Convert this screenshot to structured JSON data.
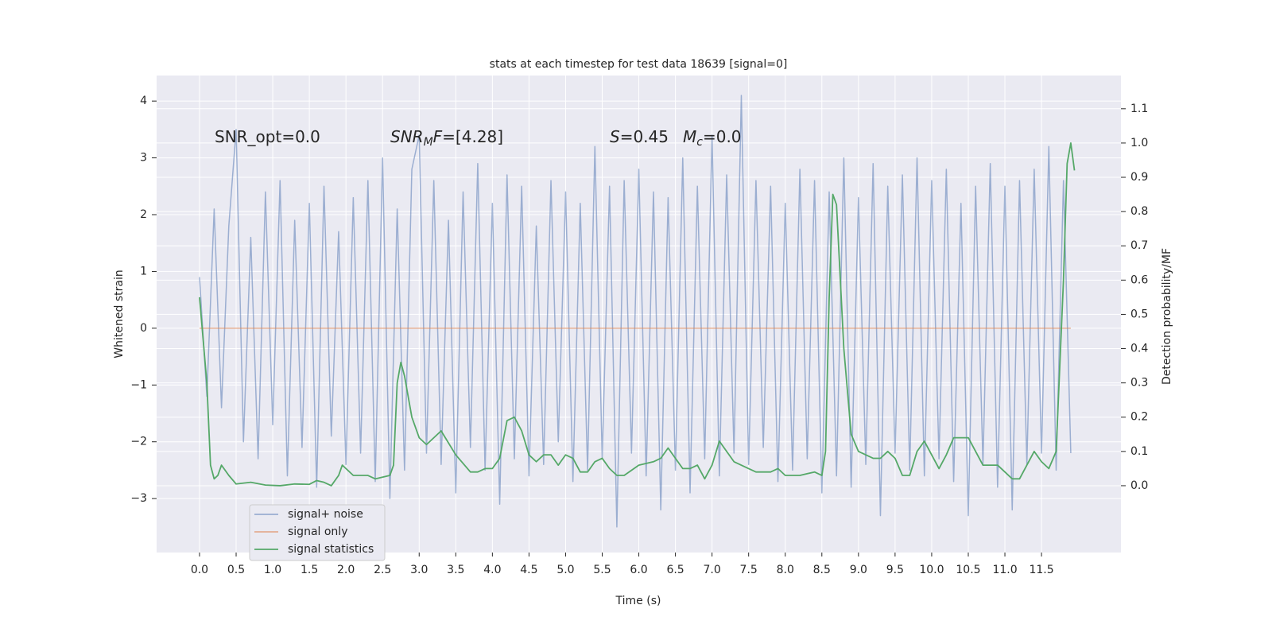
{
  "chart_data": {
    "type": "line",
    "title": "stats at each timestep for test data 18639 [signal=0]",
    "xlabel": "Time (s)",
    "ylabel": "Whitened strain",
    "y2label": "Detection probability/MF",
    "xlim": [
      -0.586,
      12.585
    ],
    "ylim": [
      -3.95,
      4.45
    ],
    "y2lim": [
      -0.195,
      1.197
    ],
    "xticks": [
      {
        "value": 0,
        "label": "0.0"
      },
      0.5,
      {
        "value": 1,
        "label": "1.0"
      },
      1.5,
      {
        "value": 2,
        "label": "2.0"
      },
      2.5,
      {
        "value": 3,
        "label": "3.0"
      },
      3.5,
      {
        "value": 4,
        "label": "4.0"
      },
      4.5,
      {
        "value": 5,
        "label": "5.0"
      },
      5.5,
      {
        "value": 6,
        "label": "6.0"
      },
      6.5,
      {
        "value": 7,
        "label": "7.0"
      },
      7.5,
      {
        "value": 8,
        "label": "8.0"
      },
      8.5,
      {
        "value": 9,
        "label": "9.0"
      },
      9.5,
      {
        "value": 10,
        "label": "10.0"
      },
      10.5,
      {
        "value": 11,
        "label": "11.0"
      },
      11.5
    ],
    "yticks": [
      {
        "value": -3,
        "label": "−3"
      },
      {
        "value": -2,
        "label": "−2"
      },
      {
        "value": -1,
        "label": "−1"
      },
      0,
      1,
      2,
      3,
      4
    ],
    "y2ticks": [
      {
        "value": 0,
        "label": "0.0"
      },
      0.1,
      0.2,
      0.3,
      0.4,
      0.5,
      0.6,
      0.7,
      0.8,
      0.9,
      {
        "value": 1,
        "label": "1.0"
      },
      1.1
    ],
    "grid": true,
    "legend": "lower left",
    "annotations": [
      {
        "parts": [
          {
            "text": "SNR_opt=0.0"
          }
        ]
      },
      {
        "parts": [
          {
            "text": "SNR",
            "italic": true
          },
          {
            "text": "M",
            "italic": true,
            "sub": true
          },
          {
            "text": "F",
            "italic": true
          },
          {
            "text": "=[4.28]"
          }
        ]
      },
      {
        "parts": [
          {
            "text": "S",
            "italic": true
          },
          {
            "text": "=0.45"
          }
        ]
      },
      {
        "parts": [
          {
            "text": "M",
            "italic": true
          },
          {
            "text": "c",
            "italic": true,
            "sub": true
          },
          {
            "text": "=0.0"
          }
        ]
      }
    ],
    "series": [
      {
        "name": "signal+ noise",
        "color": "#4c72b0",
        "opacity": 0.5,
        "x": [
          0.0,
          0.1,
          0.2,
          0.3,
          0.4,
          0.5,
          0.6,
          0.7,
          0.8,
          0.9,
          1.0,
          1.1,
          1.2,
          1.3,
          1.4,
          1.5,
          1.6,
          1.7,
          1.8,
          1.9,
          2.0,
          2.1,
          2.2,
          2.3,
          2.4,
          2.5,
          2.6,
          2.7,
          2.8,
          2.9,
          3.0,
          3.1,
          3.2,
          3.3,
          3.4,
          3.5,
          3.6,
          3.7,
          3.8,
          3.9,
          4.0,
          4.1,
          4.2,
          4.3,
          4.4,
          4.5,
          4.6,
          4.7,
          4.8,
          4.9,
          5.0,
          5.1,
          5.2,
          5.3,
          5.4,
          5.5,
          5.6,
          5.7,
          5.8,
          5.9,
          6.0,
          6.1,
          6.2,
          6.3,
          6.4,
          6.5,
          6.6,
          6.7,
          6.8,
          6.9,
          7.0,
          7.1,
          7.2,
          7.3,
          7.4,
          7.5,
          7.6,
          7.7,
          7.8,
          7.9,
          8.0,
          8.1,
          8.2,
          8.3,
          8.4,
          8.5,
          8.6,
          8.7,
          8.8,
          8.9,
          9.0,
          9.1,
          9.2,
          9.3,
          9.4,
          9.5,
          9.6,
          9.7,
          9.8,
          9.9,
          10.0,
          10.1,
          10.2,
          10.3,
          10.4,
          10.5,
          10.6,
          10.7,
          10.8,
          10.9,
          11.0,
          11.1,
          11.2,
          11.3,
          11.4,
          11.5,
          11.6,
          11.7,
          11.8,
          11.9
        ],
        "values": [
          0.9,
          -1.2,
          2.1,
          -1.4,
          1.8,
          3.5,
          -2.0,
          1.6,
          -2.3,
          2.4,
          -1.7,
          2.6,
          -2.6,
          1.9,
          -2.1,
          2.2,
          -2.8,
          2.5,
          -1.9,
          1.7,
          -2.4,
          2.3,
          -2.2,
          2.6,
          -2.7,
          3.0,
          -3.0,
          2.1,
          -2.5,
          2.8,
          3.4,
          -2.2,
          2.6,
          -2.4,
          1.9,
          -2.9,
          2.4,
          -2.1,
          2.9,
          -2.5,
          2.2,
          -3.1,
          2.7,
          -2.3,
          2.5,
          -2.6,
          1.8,
          -2.4,
          2.6,
          -2.0,
          2.4,
          -2.7,
          2.2,
          -2.5,
          3.2,
          -2.3,
          2.5,
          -3.5,
          2.6,
          -2.2,
          2.8,
          -2.6,
          2.4,
          -3.2,
          2.3,
          -2.5,
          3.0,
          -2.9,
          2.5,
          -2.3,
          3.4,
          -2.6,
          2.7,
          -2.2,
          4.1,
          -2.4,
          2.6,
          -2.1,
          2.5,
          -2.7,
          2.2,
          -2.5,
          2.8,
          -2.3,
          2.6,
          -2.9,
          2.4,
          -2.6,
          3.0,
          -2.8,
          2.3,
          -2.4,
          2.9,
          -3.3,
          2.5,
          -2.2,
          2.7,
          -2.5,
          3.0,
          -2.6,
          2.6,
          -2.3,
          2.8,
          -2.7,
          2.2,
          -3.3,
          2.5,
          -2.4,
          2.9,
          -2.8,
          2.5,
          -3.2,
          2.6,
          -2.4,
          2.8,
          -2.2,
          3.2,
          -2.5,
          2.6,
          -2.2
        ]
      },
      {
        "name": "signal only",
        "color": "#dd8452",
        "opacity": 0.6,
        "x": [
          0.0,
          11.9
        ],
        "values": [
          0,
          0
        ]
      },
      {
        "name": "signal statistics",
        "color": "#55a868",
        "opacity": 1,
        "axis": "y2",
        "x": [
          0.0,
          0.1,
          0.15,
          0.2,
          0.25,
          0.3,
          0.4,
          0.5,
          0.7,
          0.9,
          1.1,
          1.3,
          1.5,
          1.6,
          1.7,
          1.8,
          1.9,
          1.95,
          2.0,
          2.1,
          2.3,
          2.4,
          2.6,
          2.65,
          2.7,
          2.75,
          2.8,
          2.9,
          3.0,
          3.1,
          3.2,
          3.3,
          3.5,
          3.7,
          3.8,
          3.9,
          4.0,
          4.1,
          4.2,
          4.3,
          4.4,
          4.5,
          4.6,
          4.7,
          4.8,
          4.9,
          5.0,
          5.1,
          5.2,
          5.3,
          5.4,
          5.5,
          5.6,
          5.7,
          5.8,
          6.0,
          6.2,
          6.3,
          6.4,
          6.5,
          6.6,
          6.7,
          6.8,
          6.9,
          7.0,
          7.1,
          7.2,
          7.3,
          7.5,
          7.6,
          7.8,
          7.9,
          8.0,
          8.2,
          8.4,
          8.5,
          8.55,
          8.6,
          8.65,
          8.7,
          8.8,
          8.9,
          9.0,
          9.2,
          9.3,
          9.4,
          9.5,
          9.6,
          9.7,
          9.8,
          9.9,
          10.0,
          10.1,
          10.2,
          10.3,
          10.5,
          10.6,
          10.7,
          10.9,
          11.0,
          11.1,
          11.2,
          11.3,
          11.4,
          11.5,
          11.6,
          11.7,
          11.8,
          11.85,
          11.9,
          11.95
        ],
        "values": [
          0.55,
          0.3,
          0.06,
          0.02,
          0.03,
          0.06,
          0.03,
          0.005,
          0.01,
          0.002,
          0.0,
          0.005,
          0.004,
          0.015,
          0.01,
          0.0,
          0.03,
          0.06,
          0.05,
          0.03,
          0.03,
          0.02,
          0.03,
          0.06,
          0.3,
          0.36,
          0.32,
          0.2,
          0.14,
          0.12,
          0.14,
          0.16,
          0.09,
          0.04,
          0.04,
          0.05,
          0.05,
          0.08,
          0.19,
          0.2,
          0.16,
          0.09,
          0.07,
          0.09,
          0.09,
          0.06,
          0.09,
          0.08,
          0.04,
          0.04,
          0.07,
          0.08,
          0.05,
          0.03,
          0.03,
          0.06,
          0.07,
          0.08,
          0.11,
          0.08,
          0.05,
          0.05,
          0.06,
          0.02,
          0.06,
          0.13,
          0.1,
          0.07,
          0.05,
          0.04,
          0.04,
          0.05,
          0.03,
          0.03,
          0.04,
          0.03,
          0.1,
          0.55,
          0.85,
          0.82,
          0.4,
          0.15,
          0.1,
          0.08,
          0.08,
          0.1,
          0.08,
          0.03,
          0.03,
          0.1,
          0.13,
          0.09,
          0.05,
          0.09,
          0.14,
          0.14,
          0.1,
          0.06,
          0.06,
          0.04,
          0.02,
          0.02,
          0.06,
          0.1,
          0.07,
          0.05,
          0.1,
          0.6,
          0.94,
          1.0,
          0.92
        ]
      }
    ]
  }
}
